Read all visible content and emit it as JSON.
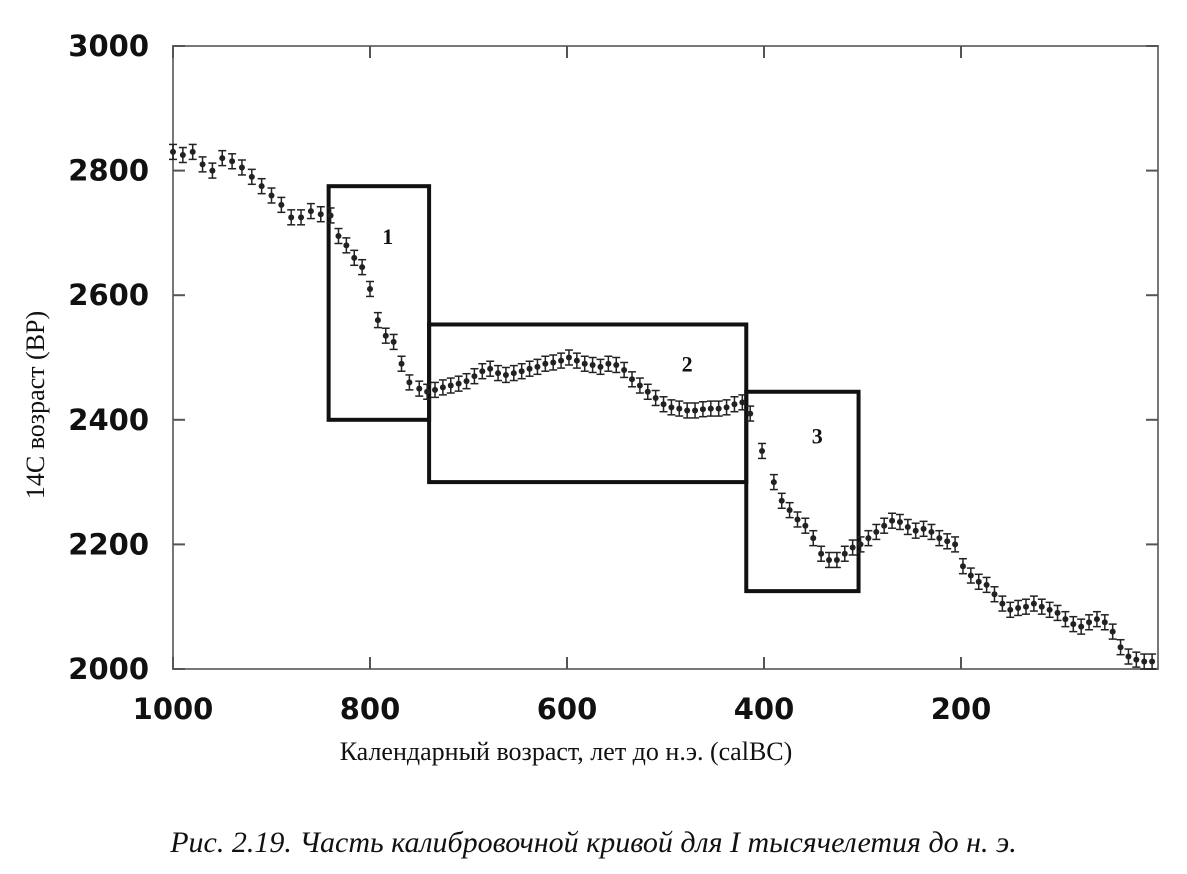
{
  "chart_data": {
    "type": "scatter",
    "xlabel": "Календарный возраст, лет до н.э. (calBC)",
    "ylabel": "14C возраст (BP)",
    "xlim": [
      1000,
      0
    ],
    "ylim": [
      2000,
      3000
    ],
    "x_ticks": [
      "1000",
      "800",
      "600",
      "400",
      "200"
    ],
    "y_ticks": [
      "3000",
      "2800",
      "2600",
      "2400",
      "2200",
      "2000"
    ],
    "grid": false,
    "points": [
      [
        1000,
        2830
      ],
      [
        990,
        2825
      ],
      [
        980,
        2830
      ],
      [
        970,
        2810
      ],
      [
        960,
        2800
      ],
      [
        950,
        2820
      ],
      [
        940,
        2815
      ],
      [
        930,
        2805
      ],
      [
        920,
        2790
      ],
      [
        910,
        2775
      ],
      [
        900,
        2760
      ],
      [
        890,
        2745
      ],
      [
        880,
        2725
      ],
      [
        870,
        2725
      ],
      [
        860,
        2735
      ],
      [
        850,
        2730
      ],
      [
        840,
        2728
      ],
      [
        832,
        2695
      ],
      [
        824,
        2680
      ],
      [
        816,
        2660
      ],
      [
        808,
        2645
      ],
      [
        800,
        2610
      ],
      [
        792,
        2560
      ],
      [
        784,
        2535
      ],
      [
        776,
        2525
      ],
      [
        768,
        2490
      ],
      [
        760,
        2460
      ],
      [
        750,
        2450
      ],
      [
        742,
        2445
      ],
      [
        734,
        2448
      ],
      [
        726,
        2452
      ],
      [
        718,
        2455
      ],
      [
        710,
        2458
      ],
      [
        702,
        2462
      ],
      [
        694,
        2470
      ],
      [
        686,
        2478
      ],
      [
        678,
        2482
      ],
      [
        670,
        2475
      ],
      [
        662,
        2472
      ],
      [
        654,
        2475
      ],
      [
        646,
        2478
      ],
      [
        638,
        2482
      ],
      [
        630,
        2485
      ],
      [
        622,
        2490
      ],
      [
        614,
        2492
      ],
      [
        606,
        2495
      ],
      [
        598,
        2500
      ],
      [
        590,
        2495
      ],
      [
        582,
        2490
      ],
      [
        574,
        2488
      ],
      [
        566,
        2485
      ],
      [
        558,
        2490
      ],
      [
        550,
        2488
      ],
      [
        542,
        2480
      ],
      [
        534,
        2465
      ],
      [
        526,
        2455
      ],
      [
        518,
        2445
      ],
      [
        510,
        2435
      ],
      [
        502,
        2425
      ],
      [
        494,
        2420
      ],
      [
        486,
        2418
      ],
      [
        478,
        2415
      ],
      [
        470,
        2415
      ],
      [
        462,
        2417
      ],
      [
        454,
        2418
      ],
      [
        446,
        2418
      ],
      [
        438,
        2420
      ],
      [
        430,
        2425
      ],
      [
        422,
        2428
      ],
      [
        414,
        2410
      ],
      [
        402,
        2350
      ],
      [
        390,
        2300
      ],
      [
        382,
        2270
      ],
      [
        374,
        2255
      ],
      [
        366,
        2240
      ],
      [
        358,
        2230
      ],
      [
        350,
        2210
      ],
      [
        342,
        2185
      ],
      [
        334,
        2175
      ],
      [
        326,
        2175
      ],
      [
        318,
        2185
      ],
      [
        310,
        2195
      ],
      [
        302,
        2200
      ],
      [
        294,
        2210
      ],
      [
        286,
        2220
      ],
      [
        278,
        2230
      ],
      [
        270,
        2238
      ],
      [
        262,
        2236
      ],
      [
        254,
        2228
      ],
      [
        246,
        2222
      ],
      [
        238,
        2225
      ],
      [
        230,
        2220
      ],
      [
        222,
        2210
      ],
      [
        214,
        2205
      ],
      [
        206,
        2200
      ],
      [
        198,
        2165
      ],
      [
        190,
        2150
      ],
      [
        182,
        2140
      ],
      [
        174,
        2135
      ],
      [
        166,
        2120
      ],
      [
        158,
        2105
      ],
      [
        150,
        2095
      ],
      [
        142,
        2098
      ],
      [
        134,
        2100
      ],
      [
        126,
        2105
      ],
      [
        118,
        2100
      ],
      [
        110,
        2095
      ],
      [
        102,
        2090
      ],
      [
        94,
        2080
      ],
      [
        86,
        2072
      ],
      [
        78,
        2068
      ],
      [
        70,
        2075
      ],
      [
        62,
        2080
      ],
      [
        54,
        2075
      ],
      [
        46,
        2060
      ],
      [
        38,
        2035
      ],
      [
        30,
        2020
      ],
      [
        22,
        2015
      ],
      [
        14,
        2012
      ],
      [
        6,
        2012
      ]
    ],
    "error_bar": 12,
    "regions": [
      {
        "label": "1",
        "x": [
          842,
          740
        ],
        "y": [
          2400,
          2775
        ],
        "label_pos": [
          782,
          2695
        ]
      },
      {
        "label": "2",
        "x": [
          740,
          418
        ],
        "y": [
          2300,
          2553
        ],
        "label_pos": [
          478,
          2490
        ]
      },
      {
        "label": "3",
        "x": [
          418,
          304
        ],
        "y": [
          2125,
          2445
        ],
        "label_pos": [
          346,
          2375
        ]
      }
    ]
  },
  "caption": "Рис. 2.19. Часть калибровочной кривой для I тысячелетия до н. э."
}
